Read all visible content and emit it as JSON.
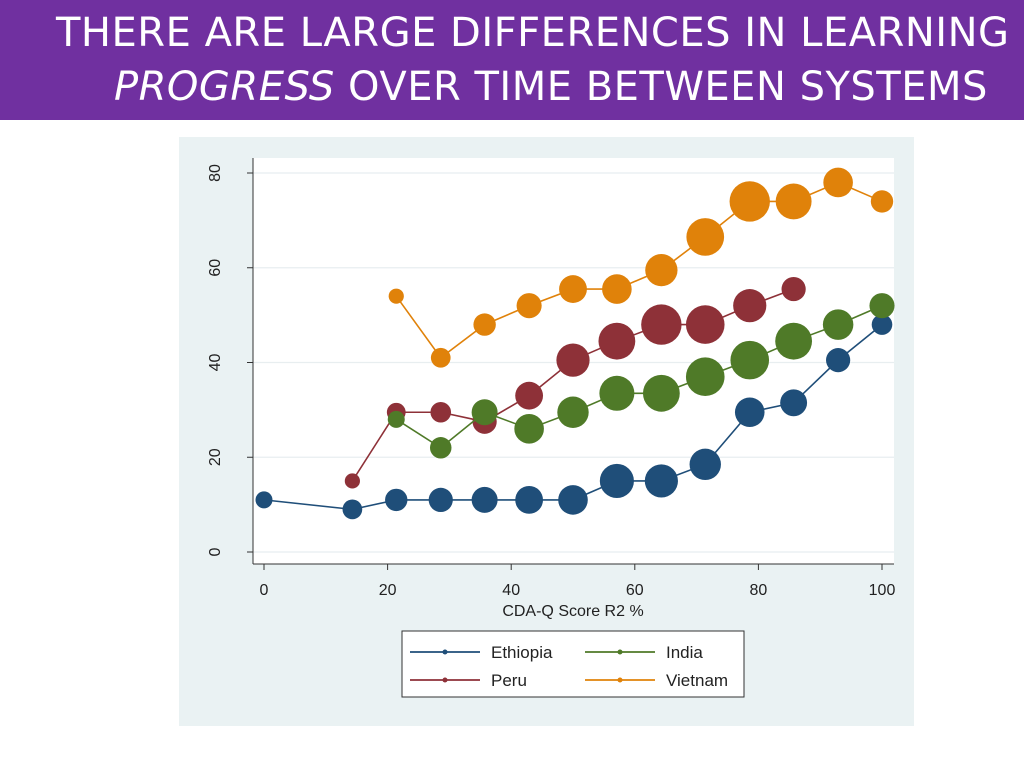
{
  "header": {
    "title_line1": "THERE ARE LARGE DIFFERENCES IN LEARNING",
    "title_emph": "PROGRESS",
    "title_rest": " OVER TIME BETWEEN SYSTEMS",
    "bg_color": "#7030a0"
  },
  "chart_data": {
    "type": "line",
    "xlabel": "CDA-Q Score R2 %",
    "ylabel": "",
    "xlim": [
      0,
      100
    ],
    "ylim": [
      0,
      80
    ],
    "xticks": [
      0,
      20,
      40,
      60,
      80,
      100
    ],
    "yticks": [
      0,
      20,
      40,
      60,
      80
    ],
    "grid": true,
    "legend_position": "bottom",
    "series": [
      {
        "name": "Ethiopia",
        "color": "#1f4e79",
        "x": [
          0,
          14.3,
          21.4,
          28.6,
          35.7,
          42.9,
          50,
          57.1,
          64.3,
          71.4,
          78.6,
          85.7,
          92.9,
          100
        ],
        "y": [
          11,
          9,
          11,
          11,
          11,
          11,
          11,
          15,
          15,
          18.5,
          29.5,
          31.5,
          40.5,
          48
        ],
        "size": [
          1,
          1.3,
          1.6,
          1.8,
          2,
          2.2,
          2.4,
          2.9,
          2.8,
          2.6,
          2.4,
          2.1,
          1.8,
          1.4
        ]
      },
      {
        "name": "Peru",
        "color": "#8e3138",
        "x": [
          14.3,
          21.4,
          28.6,
          35.7,
          42.9,
          50,
          57.1,
          64.3,
          71.4,
          78.6,
          85.7
        ],
        "y": [
          15,
          29.5,
          29.5,
          27.5,
          33,
          40.5,
          44.5,
          48,
          48,
          52,
          55.5
        ],
        "size": [
          0.8,
          1.2,
          1.4,
          1.8,
          2.2,
          2.8,
          3.2,
          3.6,
          3.4,
          2.8,
          1.8
        ]
      },
      {
        "name": "India",
        "color": "#4f7a28",
        "x": [
          21.4,
          28.6,
          35.7,
          42.9,
          50,
          57.1,
          64.3,
          71.4,
          78.6,
          85.7,
          92.9,
          100
        ],
        "y": [
          28,
          22,
          29.5,
          26,
          29.5,
          33.5,
          33.5,
          37,
          40.5,
          44.5,
          48,
          52
        ],
        "size": [
          1,
          1.5,
          2,
          2.4,
          2.6,
          3,
          3.2,
          3.4,
          3.4,
          3.2,
          2.5,
          1.9
        ]
      },
      {
        "name": "Vietnam",
        "color": "#e0820a",
        "x": [
          21.4,
          28.6,
          35.7,
          42.9,
          50,
          57.1,
          64.3,
          71.4,
          78.6,
          85.7,
          92.9,
          100
        ],
        "y": [
          54,
          41,
          48,
          52,
          55.5,
          55.5,
          59.5,
          66.5,
          74,
          74,
          78,
          74
        ],
        "size": [
          0.8,
          1.3,
          1.6,
          1.9,
          2.2,
          2.4,
          2.7,
          3.3,
          3.6,
          3.1,
          2.4,
          1.6
        ]
      }
    ]
  }
}
